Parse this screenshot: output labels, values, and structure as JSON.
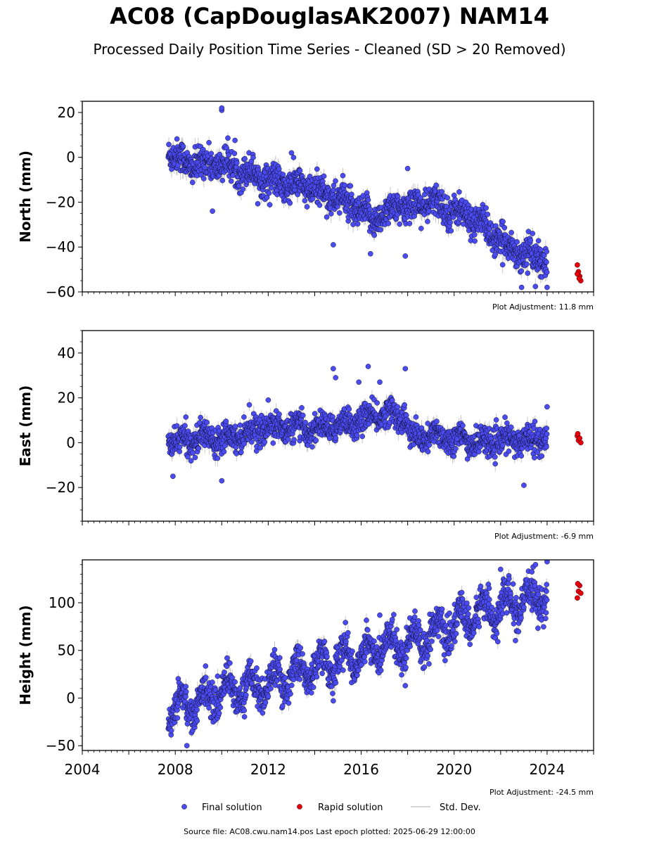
{
  "title": "AC08 (CapDouglasAK2007) NAM14",
  "subtitle": "Processed Daily Position Time Series - Cleaned (SD > 20 Removed)",
  "footer": "Source file: AC08.cwu.nam14.pos  Last epoch plotted: 2025-06-29 12:00:00",
  "legend": {
    "final": "Final solution",
    "rapid": "Rapid solution",
    "std": "Std. Dev."
  },
  "colors": {
    "final": "#4b4bf2",
    "rapid": "#e8000b",
    "std": "#c8c8c8",
    "edge": "#000000"
  },
  "chart_data": [
    {
      "type": "scatter",
      "ylabel": "North (mm)",
      "adjustment": "Plot Adjustment: 11.8 mm",
      "xlim": [
        2004,
        2026
      ],
      "ylim": [
        -60,
        25
      ],
      "yticks": [
        20,
        0,
        -20,
        -40,
        -60
      ],
      "yticklabels": [
        "20",
        "0",
        "−20",
        "−40",
        "−60"
      ],
      "final_trend": [
        [
          2007.7,
          3
        ],
        [
          2008.5,
          -3
        ],
        [
          2010.0,
          -3
        ],
        [
          2011.5,
          -8
        ],
        [
          2012.5,
          -12
        ],
        [
          2013.5,
          -13
        ],
        [
          2015.0,
          -18
        ],
        [
          2016.5,
          -28
        ],
        [
          2017.3,
          -23
        ],
        [
          2018.0,
          -22
        ],
        [
          2019.0,
          -20
        ],
        [
          2020.0,
          -24
        ],
        [
          2021.0,
          -28
        ],
        [
          2022.0,
          -38
        ],
        [
          2023.0,
          -43
        ],
        [
          2024.0,
          -46
        ]
      ],
      "final_outliers": [
        [
          2010.0,
          21
        ],
        [
          2010.0,
          22
        ],
        [
          2009.6,
          -24
        ],
        [
          2014.8,
          -39
        ],
        [
          2016.4,
          -43
        ],
        [
          2017.9,
          -44
        ],
        [
          2022.9,
          -58
        ],
        [
          2024.0,
          -58
        ],
        [
          2018.0,
          -5
        ],
        [
          2013.0,
          2
        ]
      ],
      "rapid": [
        [
          2025.3,
          -48
        ],
        [
          2025.35,
          -51
        ],
        [
          2025.4,
          -53
        ],
        [
          2025.45,
          -55
        ],
        [
          2025.3,
          -52
        ],
        [
          2025.38,
          -54
        ]
      ],
      "noise": 3.5,
      "seasonal": 2
    },
    {
      "type": "scatter",
      "ylabel": "East (mm)",
      "adjustment": "Plot Adjustment: -6.9 mm",
      "xlim": [
        2004,
        2026
      ],
      "ylim": [
        -35,
        50
      ],
      "yticks": [
        40,
        20,
        0,
        -20
      ],
      "yticklabels": [
        "40",
        "20",
        "0",
        "−20"
      ],
      "final_trend": [
        [
          2007.7,
          0
        ],
        [
          2009.0,
          2
        ],
        [
          2010.5,
          3
        ],
        [
          2012.0,
          7
        ],
        [
          2014.0,
          6
        ],
        [
          2016.0,
          10
        ],
        [
          2017.0,
          13
        ],
        [
          2017.9,
          12
        ],
        [
          2018.1,
          2
        ],
        [
          2019.5,
          3
        ],
        [
          2021.0,
          0
        ],
        [
          2022.5,
          1
        ],
        [
          2024.0,
          2
        ]
      ],
      "final_outliers": [
        [
          2014.8,
          33
        ],
        [
          2016.3,
          34
        ],
        [
          2017.9,
          33
        ],
        [
          2014.9,
          29
        ],
        [
          2015.9,
          27
        ],
        [
          2016.8,
          27
        ],
        [
          2010.0,
          -17
        ],
        [
          2023.0,
          -19
        ],
        [
          2007.9,
          -15
        ],
        [
          2024.0,
          16
        ],
        [
          2012.0,
          19
        ]
      ],
      "rapid": [
        [
          2025.3,
          3
        ],
        [
          2025.35,
          1
        ],
        [
          2025.4,
          2
        ],
        [
          2025.45,
          0
        ],
        [
          2025.32,
          4
        ]
      ],
      "noise": 3,
      "seasonal": 2
    },
    {
      "type": "scatter",
      "ylabel": "Height (mm)",
      "adjustment": "Plot Adjustment: -24.5 mm",
      "xlim": [
        2004,
        2026
      ],
      "ylim": [
        -55,
        145
      ],
      "yticks": [
        100,
        50,
        0,
        -50
      ],
      "yticklabels": [
        "100",
        "50",
        "0",
        "−50"
      ],
      "xticks": [
        2004,
        2008,
        2012,
        2016,
        2020,
        2024
      ],
      "final_trend": [
        [
          2007.7,
          -10
        ],
        [
          2009.0,
          -5
        ],
        [
          2010.0,
          8
        ],
        [
          2011.0,
          10
        ],
        [
          2012.0,
          15
        ],
        [
          2013.0,
          25
        ],
        [
          2014.0,
          32
        ],
        [
          2015.0,
          40
        ],
        [
          2016.0,
          45
        ],
        [
          2017.0,
          55
        ],
        [
          2018.0,
          58
        ],
        [
          2019.0,
          68
        ],
        [
          2020.0,
          75
        ],
        [
          2021.0,
          90
        ],
        [
          2022.0,
          95
        ],
        [
          2023.0,
          100
        ],
        [
          2024.0,
          110
        ]
      ],
      "final_outliers": [
        [
          2008.5,
          -50
        ],
        [
          2022.0,
          135
        ],
        [
          2023.5,
          140
        ],
        [
          2024.0,
          143
        ],
        [
          2017.9,
          13
        ],
        [
          2014.8,
          -3
        ],
        [
          2016.8,
          87
        ]
      ],
      "rapid": [
        [
          2025.3,
          105
        ],
        [
          2025.35,
          112
        ],
        [
          2025.4,
          118
        ],
        [
          2025.45,
          110
        ],
        [
          2025.32,
          120
        ]
      ],
      "noise": 9,
      "seasonal": 14
    }
  ]
}
